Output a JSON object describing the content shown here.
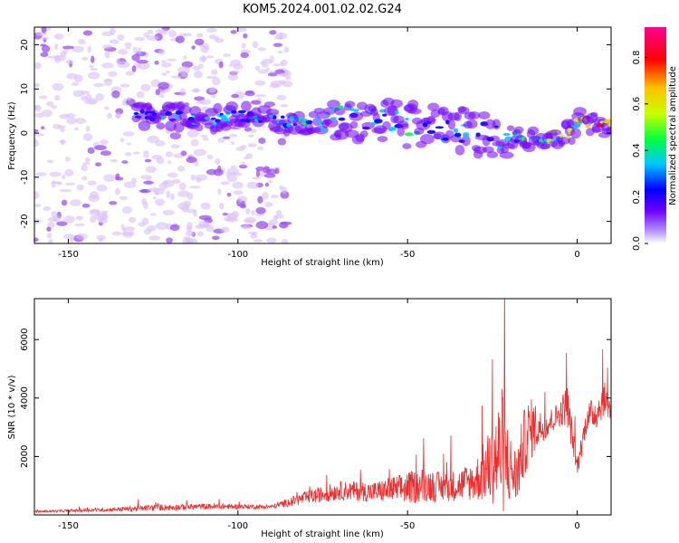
{
  "title": "KOM5.2024.001.02.02.G24",
  "chart_data": [
    {
      "type": "heatmap",
      "xlabel": "Height of straight line (km)",
      "ylabel": "Frequency (Hz)",
      "xlim": [
        -160,
        10
      ],
      "ylim": [
        -25,
        24
      ],
      "xticks": [
        -150,
        -100,
        -50,
        0
      ],
      "yticks": [
        -20,
        -10,
        0,
        10,
        20
      ],
      "colorbar": {
        "label": "Normalized spectral amplitude",
        "range": [
          0,
          0.93
        ],
        "ticks": [
          0.0,
          0.2,
          0.4,
          0.6,
          0.8
        ],
        "colormap": [
          "#b0b0f0",
          "#7000ff",
          "#0000ff",
          "#00c8ff",
          "#00ff40",
          "#c8ff00",
          "#ffc000",
          "#ff0000",
          "#ff0090"
        ]
      },
      "ridge": {
        "x": [
          -130,
          -120,
          -110,
          -100,
          -90,
          -80,
          -70,
          -60,
          -50,
          -40,
          -30,
          -20,
          -10,
          -2,
          0,
          5,
          10
        ],
        "y": [
          4,
          4,
          3,
          4,
          3,
          2,
          4,
          3,
          2,
          1,
          0,
          -1,
          -1,
          0,
          3,
          2,
          2
        ],
        "amplitude": [
          0.25,
          0.3,
          0.35,
          0.35,
          0.35,
          0.45,
          0.4,
          0.35,
          0.45,
          0.35,
          0.3,
          0.35,
          0.5,
          0.6,
          0.65,
          0.8,
          0.75
        ]
      }
    },
    {
      "type": "line",
      "xlabel": "Height of straight line (km)",
      "ylabel": "SNR (10 * v/v)",
      "xlim": [
        -160,
        10
      ],
      "ylim": [
        0,
        7400
      ],
      "xticks": [
        -150,
        -100,
        -50,
        0
      ],
      "yticks": [
        2000,
        4000,
        6000
      ],
      "line_color": "#e83030",
      "envelope": {
        "x": [
          -160,
          -140,
          -125,
          -110,
          -90,
          -80,
          -70,
          -60,
          -50,
          -45,
          -40,
          -35,
          -30,
          -25,
          -22,
          -20,
          -18,
          -15,
          -13,
          -10,
          -5,
          -3,
          -1,
          0,
          3,
          6,
          8,
          10
        ],
        "base": [
          100,
          150,
          200,
          250,
          250,
          500,
          700,
          650,
          700,
          800,
          750,
          800,
          900,
          1200,
          1300,
          1100,
          900,
          2200,
          2600,
          2800,
          3300,
          3500,
          2200,
          1500,
          3200,
          3300,
          3800,
          3400
        ],
        "spread": [
          60,
          120,
          220,
          200,
          150,
          450,
          650,
          700,
          1100,
          1200,
          1000,
          1100,
          1400,
          2800,
          4500,
          2500,
          2000,
          2500,
          2000,
          900,
          900,
          1500,
          900,
          700,
          900,
          1200,
          1100,
          900
        ]
      }
    }
  ]
}
